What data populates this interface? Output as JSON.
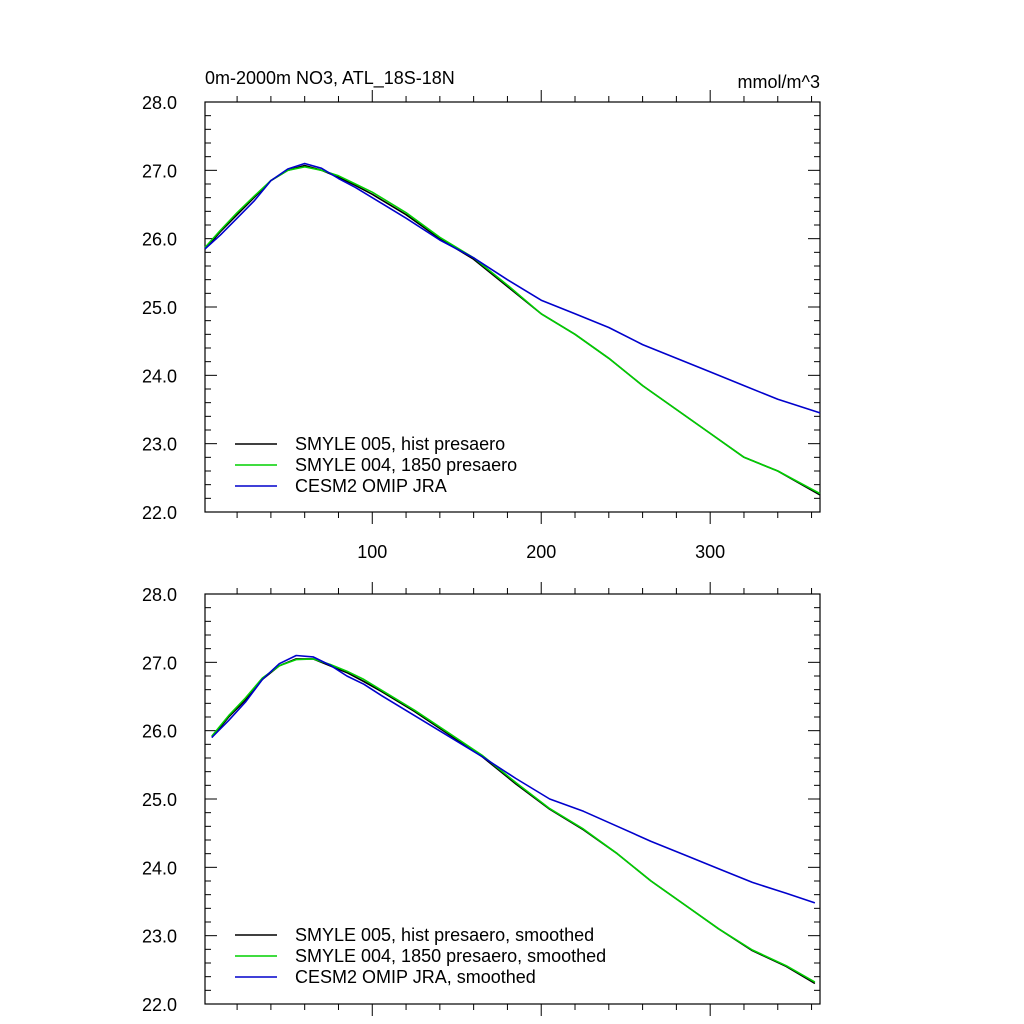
{
  "chart_data": [
    {
      "type": "line",
      "title": "0m-2000m NO3, ATL_18S-18N",
      "units": "mmol/m^3",
      "xlim": [
        1,
        365
      ],
      "ylim": [
        22.0,
        28.0
      ],
      "x_ticks": [
        100,
        200,
        300
      ],
      "y_ticks": [
        "22.0",
        "23.0",
        "24.0",
        "25.0",
        "26.0",
        "27.0",
        "28.0"
      ],
      "series": [
        {
          "name": "SMYLE 005, hist presaero",
          "color": "#000000",
          "x": [
            1,
            10,
            20,
            30,
            40,
            50,
            60,
            70,
            80,
            90,
            100,
            120,
            140,
            160,
            180,
            200,
            220,
            240,
            260,
            280,
            300,
            320,
            340,
            365
          ],
          "y": [
            25.85,
            26.1,
            26.35,
            26.6,
            26.85,
            27.0,
            27.07,
            27.0,
            26.9,
            26.78,
            26.65,
            26.35,
            26.0,
            25.7,
            25.3,
            24.9,
            24.6,
            24.25,
            23.85,
            23.5,
            23.15,
            22.8,
            22.6,
            22.25
          ]
        },
        {
          "name": "SMYLE 004, 1850 presaero",
          "color": "#00d000",
          "x": [
            1,
            10,
            20,
            30,
            40,
            50,
            60,
            70,
            80,
            90,
            100,
            120,
            140,
            160,
            180,
            200,
            220,
            240,
            260,
            280,
            300,
            320,
            340,
            365
          ],
          "y": [
            25.87,
            26.12,
            26.38,
            26.62,
            26.85,
            27.0,
            27.05,
            27.0,
            26.92,
            26.8,
            26.68,
            26.38,
            26.02,
            25.72,
            25.32,
            24.9,
            24.6,
            24.25,
            23.85,
            23.5,
            23.15,
            22.8,
            22.6,
            22.27
          ]
        },
        {
          "name": "CESM2 OMIP JRA",
          "color": "#0000cc",
          "x": [
            1,
            10,
            20,
            30,
            40,
            50,
            60,
            70,
            80,
            90,
            100,
            120,
            140,
            160,
            180,
            200,
            220,
            240,
            260,
            280,
            300,
            320,
            340,
            365
          ],
          "y": [
            25.85,
            26.05,
            26.3,
            26.55,
            26.85,
            27.02,
            27.1,
            27.03,
            26.88,
            26.75,
            26.6,
            26.3,
            25.98,
            25.72,
            25.4,
            25.1,
            24.9,
            24.7,
            24.45,
            24.25,
            24.05,
            23.85,
            23.65,
            23.45
          ]
        }
      ],
      "legend_position": "bottom-left"
    },
    {
      "type": "line",
      "xlim": [
        1,
        365
      ],
      "ylim": [
        22.0,
        28.0
      ],
      "y_ticks": [
        "22.0",
        "23.0",
        "24.0",
        "25.0",
        "26.0",
        "27.0",
        "28.0"
      ],
      "series": [
        {
          "name": "SMYLE 005, hist presaero, smoothed",
          "color": "#000000",
          "x": [
            5,
            15,
            25,
            35,
            45,
            55,
            65,
            75,
            85,
            95,
            105,
            125,
            145,
            165,
            185,
            205,
            225,
            245,
            265,
            285,
            305,
            325,
            345,
            362
          ],
          "y": [
            25.9,
            26.2,
            26.45,
            26.75,
            26.95,
            27.05,
            27.05,
            26.95,
            26.85,
            26.72,
            26.58,
            26.28,
            25.95,
            25.62,
            25.22,
            24.85,
            24.55,
            24.2,
            23.8,
            23.45,
            23.1,
            22.78,
            22.55,
            22.3
          ]
        },
        {
          "name": "SMYLE 004, 1850 presaero, smoothed",
          "color": "#00d000",
          "x": [
            5,
            15,
            25,
            35,
            45,
            55,
            65,
            75,
            85,
            95,
            105,
            125,
            145,
            165,
            185,
            205,
            225,
            245,
            265,
            285,
            305,
            325,
            345,
            362
          ],
          "y": [
            25.92,
            26.22,
            26.48,
            26.77,
            26.95,
            27.04,
            27.05,
            26.97,
            26.87,
            26.75,
            26.6,
            26.3,
            25.97,
            25.64,
            25.24,
            24.86,
            24.56,
            24.2,
            23.8,
            23.45,
            23.1,
            22.79,
            22.56,
            22.32
          ]
        },
        {
          "name": "CESM2 OMIP JRA, smoothed",
          "color": "#0000cc",
          "x": [
            5,
            15,
            25,
            35,
            45,
            55,
            65,
            75,
            85,
            95,
            105,
            125,
            145,
            165,
            185,
            205,
            225,
            245,
            265,
            285,
            305,
            325,
            345,
            362
          ],
          "y": [
            25.9,
            26.15,
            26.42,
            26.75,
            26.98,
            27.1,
            27.08,
            26.96,
            26.8,
            26.68,
            26.52,
            26.22,
            25.92,
            25.62,
            25.3,
            25.0,
            24.82,
            24.6,
            24.38,
            24.18,
            23.98,
            23.78,
            23.62,
            23.48
          ]
        }
      ],
      "legend_position": "bottom-left"
    }
  ]
}
